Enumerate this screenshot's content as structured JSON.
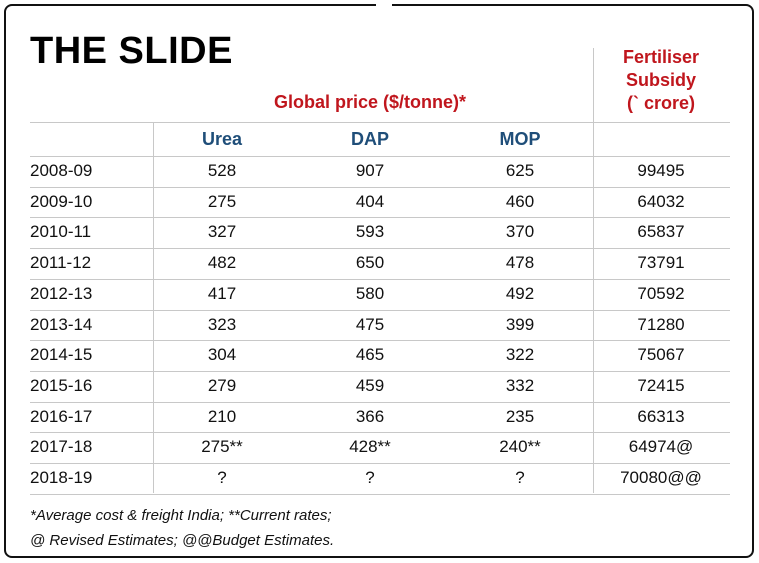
{
  "title": "THE SLIDE",
  "group_header": "Global price ($/tonne)*",
  "subsidy_header": [
    "Fertiliser",
    "Subsidy",
    "(` crore)"
  ],
  "table": {
    "columns": [
      "Urea",
      "DAP",
      "MOP"
    ],
    "rows": [
      [
        "2008-09",
        "528",
        "907",
        "625",
        "99495"
      ],
      [
        "2009-10",
        "275",
        "404",
        "460",
        "64032"
      ],
      [
        "2010-11",
        "327",
        "593",
        "370",
        "65837"
      ],
      [
        "2011-12",
        "482",
        "650",
        "478",
        "73791"
      ],
      [
        "2012-13",
        "417",
        "580",
        "492",
        "70592"
      ],
      [
        "2013-14",
        "323",
        "475",
        "399",
        "71280"
      ],
      [
        "2014-15",
        "304",
        "465",
        "322",
        "75067"
      ],
      [
        "2015-16",
        "279",
        "459",
        "332",
        "72415"
      ],
      [
        "2016-17",
        "210",
        "366",
        "235",
        "66313"
      ],
      [
        "2017-18",
        "275**",
        "428**",
        "240**",
        "64974@"
      ],
      [
        "2018-19",
        "?",
        "?",
        "?",
        "70080@@"
      ]
    ]
  },
  "footnotes": [
    "*Average cost & freight India; **Current rates;",
    "@ Revised Estimates; @@Budget Estimates."
  ]
}
